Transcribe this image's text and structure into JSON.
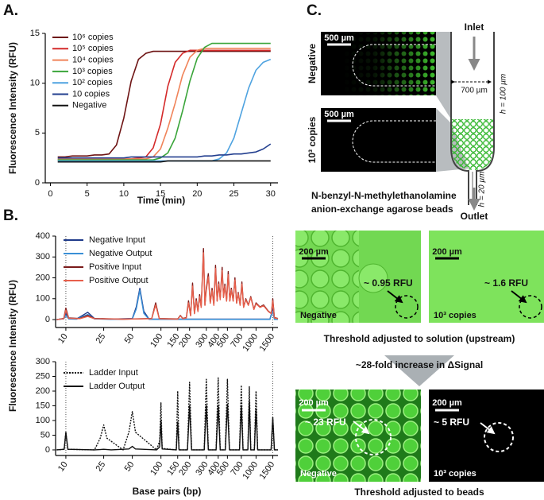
{
  "panel_labels": [
    "A.",
    "B.",
    "C."
  ],
  "chart_data": [
    {
      "type": "line",
      "y_label": "Fluorescence Intensity (RFU)",
      "x_label": "Time (min)",
      "x": [
        1,
        2,
        3,
        4,
        5,
        6,
        7,
        8,
        9,
        10,
        11,
        12,
        13,
        14,
        15,
        16,
        17,
        18,
        19,
        20,
        21,
        22,
        23,
        24,
        25,
        26,
        27,
        28,
        29,
        30
      ],
      "xlim": [
        -0.7,
        31
      ],
      "xticks": [
        0,
        5,
        10,
        15,
        20,
        25,
        30
      ],
      "ylim": [
        0,
        15
      ],
      "yticks": [
        0,
        5,
        10,
        15
      ],
      "legend": "upper left",
      "series": [
        {
          "name": "10⁶ copies",
          "color": "#6e1414",
          "values": [
            2.6,
            2.6,
            2.7,
            2.7,
            2.7,
            2.8,
            2.8,
            2.9,
            3.8,
            6.5,
            10.2,
            12.4,
            13.0,
            13.2,
            13.2,
            13.2,
            13.2,
            13.2,
            13.2,
            13.2,
            13.2,
            13.2,
            13.2,
            13.2,
            13.2,
            13.2,
            13.2,
            13.2,
            13.2,
            13.2
          ]
        },
        {
          "name": "10⁵ copies",
          "color": "#d42a2a",
          "values": [
            2.3,
            2.3,
            2.3,
            2.3,
            2.3,
            2.3,
            2.4,
            2.4,
            2.4,
            2.4,
            2.4,
            2.5,
            2.6,
            3.5,
            5.9,
            9.7,
            12.1,
            13.0,
            13.3,
            13.3,
            13.3,
            13.3,
            13.3,
            13.3,
            13.3,
            13.3,
            13.3,
            13.3,
            13.3,
            13.3
          ]
        },
        {
          "name": "10⁴ copies",
          "color": "#f0845a",
          "values": [
            2.4,
            2.4,
            2.4,
            2.4,
            2.4,
            2.4,
            2.4,
            2.4,
            2.4,
            2.4,
            2.4,
            2.4,
            2.4,
            2.6,
            3.4,
            5.5,
            8.0,
            10.8,
            12.6,
            13.3,
            13.5,
            13.5,
            13.5,
            13.5,
            13.5,
            13.5,
            13.5,
            13.5,
            13.5,
            13.5
          ]
        },
        {
          "name": "10³ copies",
          "color": "#3aa53a",
          "values": [
            2.3,
            2.3,
            2.3,
            2.3,
            2.3,
            2.3,
            2.3,
            2.3,
            2.3,
            2.3,
            2.3,
            2.3,
            2.3,
            2.3,
            2.5,
            3.0,
            4.5,
            7.2,
            10.2,
            12.5,
            13.6,
            14.0,
            14.0,
            14.0,
            14.0,
            14.0,
            14.0,
            14.0,
            14.0,
            14.0
          ]
        },
        {
          "name": "10² copies",
          "color": "#4fa3e0",
          "values": [
            2.2,
            2.2,
            2.2,
            2.2,
            2.2,
            2.2,
            2.2,
            2.2,
            2.2,
            2.2,
            2.2,
            2.2,
            2.2,
            2.2,
            2.2,
            2.2,
            2.2,
            2.2,
            2.2,
            2.2,
            2.2,
            2.2,
            2.4,
            3.0,
            4.5,
            7.0,
            9.5,
            11.3,
            12.1,
            12.4
          ]
        },
        {
          "name": "10 copies",
          "color": "#233f8f",
          "values": [
            2.5,
            2.5,
            2.5,
            2.5,
            2.5,
            2.5,
            2.5,
            2.5,
            2.5,
            2.5,
            2.6,
            2.6,
            2.6,
            2.6,
            2.6,
            2.6,
            2.6,
            2.6,
            2.6,
            2.6,
            2.7,
            2.7,
            2.8,
            2.8,
            2.9,
            2.9,
            3.0,
            3.1,
            3.4,
            3.9
          ]
        },
        {
          "name": "Negative",
          "color": "#111111",
          "values": [
            2.1,
            2.1,
            2.1,
            2.1,
            2.1,
            2.1,
            2.1,
            2.1,
            2.1,
            2.1,
            2.1,
            2.1,
            2.1,
            2.1,
            2.1,
            2.2,
            2.2,
            2.2,
            2.2,
            2.2,
            2.2,
            2.2,
            2.2,
            2.2,
            2.2,
            2.2,
            2.2,
            2.2,
            2.2,
            2.2
          ]
        }
      ]
    },
    {
      "type": "line",
      "y_label": "Fluorescence Intensity (RFU)",
      "xscale": "log",
      "ref_lines": true,
      "xlim": [
        7.8,
        1700
      ],
      "xticks": [
        10,
        25,
        50,
        100,
        150,
        200,
        300,
        400,
        500,
        700,
        1000,
        1500
      ],
      "ylim": [
        -38,
        400
      ],
      "yticks": [
        0,
        100,
        200,
        300,
        400
      ],
      "legend": "upper left",
      "series": [
        {
          "name": "Negative Input",
          "color": "#1f3a8a",
          "x": [
            8,
            9.5,
            10,
            10.7,
            13,
            17,
            20,
            30,
            50,
            55,
            60,
            66,
            75,
            1400,
            1500,
            1560,
            1700
          ],
          "values": [
            0,
            5,
            30,
            5,
            3,
            35,
            5,
            2,
            5,
            60,
            150,
            40,
            2,
            2,
            50,
            2,
            2
          ]
        },
        {
          "name": "Negative Output",
          "color": "#3a8fd6",
          "x": [
            8,
            9.5,
            10,
            10.7,
            13,
            17,
            20,
            30,
            50,
            55,
            60,
            66,
            75,
            1400,
            1500,
            1560,
            1700
          ],
          "values": [
            0,
            3,
            20,
            3,
            2,
            25,
            3,
            1,
            3,
            50,
            140,
            30,
            1,
            1,
            40,
            1,
            1
          ]
        },
        {
          "name": "Positive Input",
          "color": "#7a1a1a",
          "x": [
            8,
            9.5,
            10,
            10.7,
            14,
            17,
            20,
            40,
            80,
            88,
            96,
            150,
            160,
            170,
            185,
            195,
            205,
            215,
            225,
            235,
            245,
            255,
            265,
            280,
            290,
            300,
            315,
            330,
            345,
            360,
            375,
            390,
            405,
            420,
            440,
            455,
            470,
            490,
            510,
            530,
            550,
            575,
            600,
            625,
            650,
            680,
            710,
            740,
            780,
            830,
            880,
            950,
            1000,
            1100,
            1200,
            1350,
            1450,
            1500,
            1560,
            1700
          ],
          "values": [
            0,
            5,
            55,
            8,
            5,
            20,
            5,
            2,
            5,
            80,
            5,
            3,
            20,
            5,
            10,
            90,
            20,
            175,
            30,
            100,
            40,
            120,
            60,
            340,
            70,
            150,
            220,
            80,
            150,
            70,
            260,
            90,
            180,
            100,
            250,
            110,
            170,
            90,
            230,
            90,
            150,
            90,
            200,
            80,
            130,
            70,
            180,
            60,
            100,
            70,
            110,
            50,
            80,
            60,
            70,
            40,
            30,
            100,
            10,
            5
          ]
        },
        {
          "name": "Positive Output",
          "color": "#e8604c",
          "x": [
            8,
            9.5,
            10,
            10.7,
            14,
            17,
            20,
            40,
            80,
            88,
            96,
            150,
            160,
            170,
            185,
            195,
            205,
            215,
            225,
            235,
            245,
            255,
            265,
            280,
            290,
            300,
            315,
            330,
            345,
            360,
            375,
            390,
            405,
            420,
            440,
            455,
            470,
            490,
            510,
            530,
            550,
            575,
            600,
            625,
            650,
            680,
            710,
            740,
            780,
            830,
            880,
            950,
            1000,
            1100,
            1200,
            1350,
            1450,
            1500,
            1560,
            1700
          ],
          "values": [
            0,
            4,
            45,
            6,
            4,
            15,
            4,
            2,
            4,
            70,
            4,
            2,
            18,
            4,
            8,
            80,
            18,
            160,
            28,
            90,
            38,
            110,
            58,
            320,
            68,
            140,
            205,
            78,
            140,
            68,
            245,
            88,
            170,
            95,
            235,
            105,
            160,
            88,
            215,
            88,
            142,
            88,
            190,
            78,
            125,
            68,
            170,
            58,
            95,
            68,
            105,
            48,
            76,
            58,
            66,
            38,
            28,
            90,
            8,
            4
          ]
        }
      ]
    },
    {
      "type": "line",
      "x_label": "Base pairs (bp)",
      "xscale": "log",
      "ref_lines": true,
      "xlim": [
        7.8,
        1700
      ],
      "xticks": [
        10,
        25,
        50,
        100,
        150,
        200,
        300,
        400,
        500,
        700,
        1000,
        1500
      ],
      "ylim": [
        -19,
        300
      ],
      "yticks": [
        0,
        50,
        100,
        150,
        200,
        250,
        300
      ],
      "legend": "upper left",
      "series": [
        {
          "name": "Ladder Input",
          "color": "#111111",
          "linestyle": "dotted",
          "x": [
            8,
            9.6,
            10,
            10.5,
            20,
            23,
            25,
            27,
            40,
            46,
            50,
            54,
            90,
            97,
            100,
            103,
            145,
            150,
            155,
            190,
            200,
            210,
            285,
            300,
            315,
            380,
            400,
            420,
            475,
            500,
            525,
            670,
            700,
            730,
            820,
            850,
            880,
            960,
            1000,
            1040,
            1440,
            1500,
            1560,
            1700
          ],
          "values": [
            0,
            2,
            60,
            2,
            0,
            40,
            85,
            40,
            0,
            60,
            130,
            60,
            0,
            30,
            160,
            5,
            0,
            200,
            0,
            0,
            230,
            0,
            0,
            240,
            0,
            0,
            245,
            0,
            0,
            240,
            0,
            0,
            220,
            0,
            0,
            215,
            0,
            0,
            200,
            0,
            0,
            110,
            0,
            0
          ]
        },
        {
          "name": "Ladder Output",
          "color": "#111111",
          "linestyle": "solid",
          "x": [
            8,
            9.6,
            10,
            10.5,
            20,
            25,
            30,
            46,
            50,
            54,
            90,
            97,
            100,
            103,
            145,
            150,
            155,
            190,
            200,
            210,
            285,
            300,
            315,
            380,
            400,
            420,
            475,
            500,
            525,
            670,
            700,
            730,
            820,
            850,
            880,
            960,
            1000,
            1040,
            1440,
            1500,
            1560,
            1700
          ],
          "values": [
            0,
            2,
            60,
            2,
            0,
            2,
            0,
            3,
            12,
            3,
            0,
            10,
            100,
            3,
            0,
            95,
            0,
            0,
            150,
            0,
            0,
            150,
            0,
            0,
            150,
            0,
            0,
            155,
            0,
            0,
            150,
            0,
            0,
            165,
            0,
            0,
            140,
            0,
            0,
            110,
            0,
            0
          ]
        }
      ]
    }
  ],
  "panel_c": {
    "top": {
      "row_labels": [
        "Negative",
        "10³ copies"
      ],
      "scale_bars": [
        "500 µm",
        "500 µm"
      ],
      "inlet": "Inlet",
      "width": "700 µm",
      "height_top": "h = 100 µm",
      "height_bottom": "h = 20 µm",
      "outlet": "Outlet",
      "beads": [
        "N-benzyl-N-methylethanolamine",
        "anion-exchange agarose beads"
      ]
    },
    "solution": {
      "images": [
        {
          "scale": "200 µm",
          "signal": "~ 0.95 RFU",
          "label": "Negative"
        },
        {
          "scale": "200 µm",
          "signal": "~ 1.6 RFU",
          "label": "10³ copies"
        }
      ],
      "caption": "Threshold adjusted to solution (upstream)"
    },
    "arrow": "~28-fold increase in ΔSignal",
    "beads": {
      "images": [
        {
          "scale": "200 µm",
          "signal": "~ 23 RFU",
          "label": "Negative"
        },
        {
          "scale": "200 µm",
          "signal": "~ 5 RFU",
          "label": "10³ copies"
        }
      ],
      "caption": "Threshold adjusted to beads"
    }
  }
}
